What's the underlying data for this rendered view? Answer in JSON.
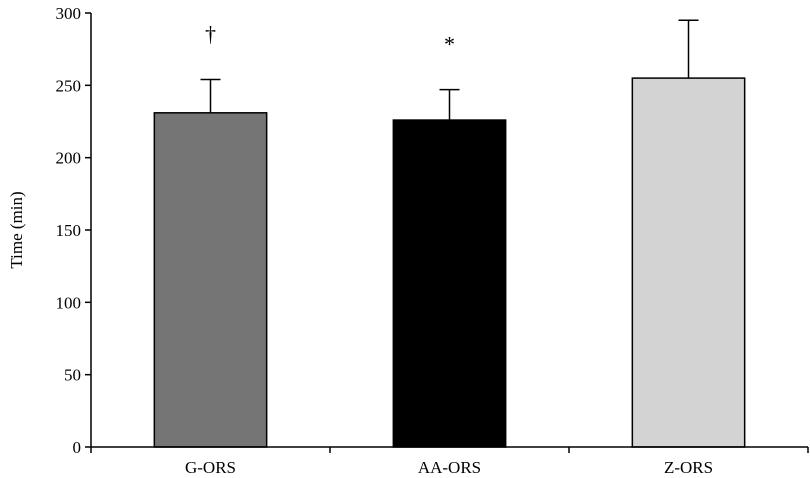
{
  "chart_data": {
    "type": "bar",
    "title": "",
    "xlabel": "",
    "ylabel": "Time (min)",
    "ylim": [
      0,
      300
    ],
    "yticks": [
      0,
      50,
      100,
      150,
      200,
      250,
      300
    ],
    "grid": false,
    "categories": [
      "G-ORS",
      "AA-ORS",
      "Z-ORS"
    ],
    "values": [
      231,
      226,
      255
    ],
    "errors": [
      23,
      21,
      40
    ],
    "annotations": [
      "†",
      "*",
      ""
    ],
    "colors": [
      "#757575",
      "#000000",
      "#d3d3d3"
    ]
  }
}
